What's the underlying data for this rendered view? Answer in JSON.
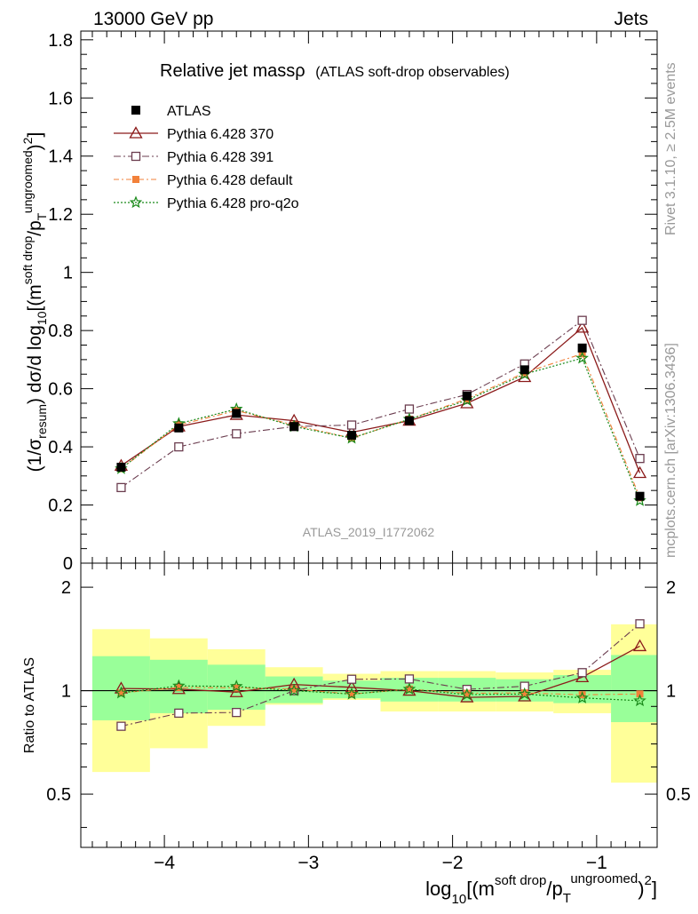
{
  "header": {
    "left": "13000 GeV pp",
    "right": "Jets"
  },
  "side_text": {
    "rivet": "Rivet 3.1.10, ≥ 2.5M events",
    "mcplots": "mcplots.cern.ch [arXiv:1306.3436]"
  },
  "chart_data": {
    "type": "line",
    "title": "Relative jet massρ",
    "subtitle": "(ATLAS soft-drop observables)",
    "analysis_label": "ATLAS_2019_I1772062",
    "xlabel": "log10[(m^{soft drop}/p_T^{ungroomed})^2]",
    "xlabel_parts": {
      "pre": "log",
      "sub10": "10",
      "mid": "[(m",
      "sup1": "soft drop",
      "slash": "/p",
      "subT": "T",
      "sup2": "ungroomed",
      "post1": ")",
      "sup3": "2",
      "post2": "]"
    },
    "ylabel": "(1/σresum) dσ/d log10[(m^{soft drop}/p_T^{ungroomed})^2]",
    "ratio_ylabel": "Ratio to ATLAS",
    "xlim": [
      -4.58,
      -0.58
    ],
    "ylim": [
      0,
      1.83
    ],
    "ratio_ylim": [
      0.35,
      2.35
    ],
    "ratio_log": true,
    "x_ticks": [
      -4,
      -3,
      -2,
      -1
    ],
    "x_tick_labels": [
      "−4",
      "−3",
      "−2",
      "−1"
    ],
    "y_ticks": [
      0,
      0.2,
      0.4,
      0.6,
      0.8,
      1,
      1.2,
      1.4,
      1.6,
      1.8
    ],
    "y_tick_labels": [
      "0",
      "0.2",
      "0.4",
      "0.6",
      "0.8",
      "1",
      "1.2",
      "1.4",
      "1.6",
      "1.8"
    ],
    "ratio_ticks": [
      0.5,
      1,
      2
    ],
    "ratio_tick_labels": [
      "0.5",
      "1",
      "2"
    ],
    "bins": [
      -4.5,
      -4.1,
      -3.7,
      -3.3,
      -2.9,
      -2.5,
      -2.1,
      -1.7,
      -1.3,
      -0.9,
      -0.5
    ],
    "x": [
      -4.3,
      -3.9,
      -3.5,
      -3.1,
      -2.7,
      -2.3,
      -1.9,
      -1.5,
      -1.1,
      -0.7
    ],
    "data": {
      "name": "ATLAS",
      "values": [
        0.33,
        0.465,
        0.515,
        0.47,
        0.44,
        0.49,
        0.575,
        0.665,
        0.74,
        0.23
      ],
      "band_inner": [
        [
          0.82,
          1.26
        ],
        [
          0.86,
          1.23
        ],
        [
          0.88,
          1.19
        ],
        [
          0.92,
          1.1
        ],
        [
          0.95,
          1.07
        ],
        [
          0.93,
          1.09
        ],
        [
          0.93,
          1.09
        ],
        [
          0.93,
          1.08
        ],
        [
          0.92,
          1.11
        ],
        [
          0.81,
          1.27
        ]
      ],
      "band_outer": [
        [
          0.58,
          1.51
        ],
        [
          0.68,
          1.42
        ],
        [
          0.79,
          1.32
        ],
        [
          0.91,
          1.17
        ],
        [
          0.94,
          1.12
        ],
        [
          0.87,
          1.14
        ],
        [
          0.87,
          1.14
        ],
        [
          0.87,
          1.13
        ],
        [
          0.86,
          1.15
        ],
        [
          0.54,
          1.56
        ]
      ]
    },
    "series": [
      {
        "name": "Pythia 6.428 370",
        "color": "#8b1a1a",
        "marker": "triangle-open",
        "dash": "",
        "width": 1.3,
        "values": [
          0.335,
          0.47,
          0.51,
          0.49,
          0.45,
          0.49,
          0.55,
          0.64,
          0.81,
          0.31
        ]
      },
      {
        "name": "Pythia 6.428 391",
        "color": "#6b3d4f",
        "marker": "square-open",
        "dash": "8,3,2,3",
        "width": 1.1,
        "values": [
          0.26,
          0.4,
          0.445,
          0.47,
          0.475,
          0.53,
          0.58,
          0.685,
          0.835,
          0.36
        ]
      },
      {
        "name": "Pythia 6.428 default",
        "color": "#f2813a",
        "marker": "square-filled",
        "dash": "6,3,2,3",
        "width": 1.1,
        "values": [
          0.325,
          0.475,
          0.525,
          0.475,
          0.43,
          0.495,
          0.565,
          0.655,
          0.72,
          0.225
        ]
      },
      {
        "name": "Pythia 6.428 pro-q2o",
        "color": "#1a8a1a",
        "marker": "star",
        "dash": "2,2",
        "width": 1.2,
        "values": [
          0.325,
          0.48,
          0.53,
          0.47,
          0.43,
          0.495,
          0.56,
          0.65,
          0.705,
          0.215
        ]
      }
    ],
    "legend_position": "top-left",
    "grid": false
  }
}
